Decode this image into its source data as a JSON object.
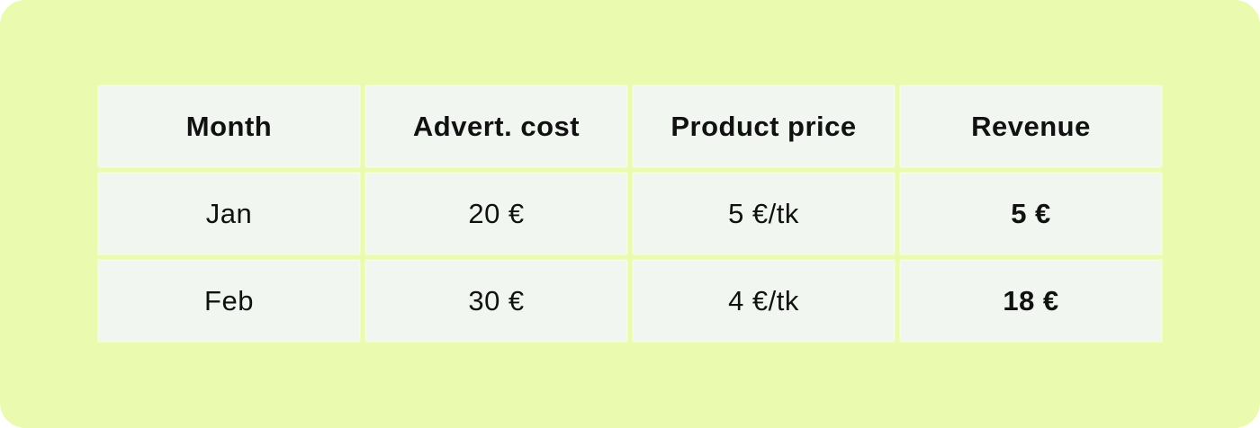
{
  "table": {
    "headers": [
      "Month",
      "Advert. cost",
      "Product price",
      "Revenue"
    ],
    "rows": [
      {
        "month": "Jan",
        "advert_cost": "20 €",
        "product_price": "5 €/tk",
        "revenue": "5 €"
      },
      {
        "month": "Feb",
        "advert_cost": "30 €",
        "product_price": "4 €/tk",
        "revenue": "18 €"
      }
    ]
  },
  "colors": {
    "background": "#eafbb0",
    "cell": "#f1f6f1",
    "text": "#111111"
  }
}
